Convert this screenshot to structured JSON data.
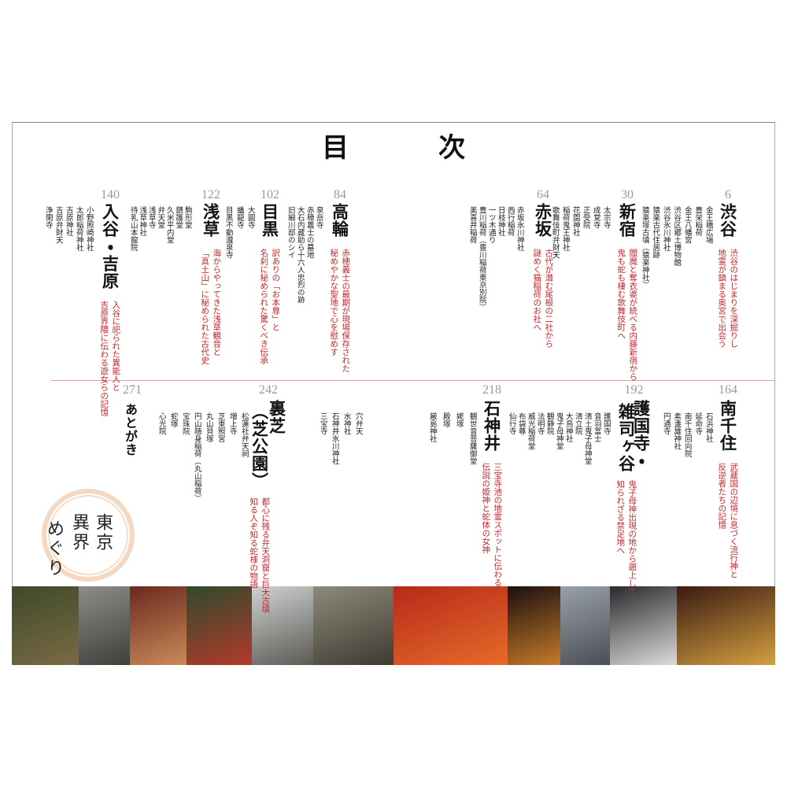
{
  "title": "目　次",
  "sections": [
    {
      "page": "6",
      "title": [
        "渋谷"
      ],
      "subtitle": [
        "渋谷のはじまりを深掘りし",
        "地霊が鎮まる奥宮で出会う"
      ],
      "items": [
        "金王橋広場",
        "豊栄稲荷",
        "金王八幡宮",
        "渋谷区郷土博物館",
        "渋谷氷川神社",
        "猿楽古代住居跡",
        "猿楽塚古墳（猿楽神社）"
      ]
    },
    {
      "page": "30",
      "title": [
        "新宿"
      ],
      "subtitle": [
        "閻魔と奪衣婆が統べる内藤新宿から",
        "鬼も蛇も棲む歌舞伎町へ"
      ],
      "items": [
        "太宗寺",
        "成覚寺",
        "正受院",
        "花園神社",
        "稲荷鬼王神社",
        "歌舞伎町弁財天"
      ]
    },
    {
      "page": "64",
      "title": [
        "赤坂"
      ],
      "subtitle": [
        "古代が潜む尾根の二社から",
        "謎めく猫稲荷のお社へ"
      ],
      "items": [
        "赤坂氷川神社",
        "西行稲荷",
        "日枝神社",
        "一ツ木通り",
        "豊川稲荷（豊川稲荷東京別院）",
        "美喜井稲荷"
      ]
    },
    {
      "page": "84",
      "title": [
        "高輪"
      ],
      "subtitle": [
        "赤穂義士の最期が現場保存された",
        "秘めやかな聖地で心を慰めす"
      ],
      "items": [
        "泉岳寺",
        "赤穂義士の墓地",
        "大石内蔵助ら十六人忠烈の跡",
        "旧細川邸のシイ"
      ]
    },
    {
      "page": "102",
      "title": [
        "目黒"
      ],
      "subtitle": [
        "訳ありの「お本尊」と",
        "名刹に秘められた驚くべき伝承"
      ],
      "items": [
        "大圓寺",
        "蟠龍寺",
        "目黒不動瀧泉寺"
      ]
    },
    {
      "page": "122",
      "title": [
        "浅草"
      ],
      "subtitle": [
        "海からやってきた浅草観音と",
        "「真土山」に秘められた古代史"
      ],
      "items": [
        "駒形堂",
        "鎮護堂",
        "久米平内堂",
        "弁天堂",
        "浅草寺",
        "浅草神社",
        "待乳山本龍院"
      ]
    },
    {
      "page": "140",
      "title": [
        "入谷・吉原"
      ],
      "subtitle": [
        "入谷に祀られた異能人と",
        "吉原界隈に伝わる遊女らの記憶"
      ],
      "items": [
        "小野照崎神社",
        "太郎稲荷神社",
        "吉原神社",
        "吉原弁財天",
        "浄閑寺"
      ]
    },
    {
      "page": "164",
      "title": [
        "南千住"
      ],
      "subtitle": [
        "武蔵国の辺境に息づく流行神と",
        "反逆者たちの記憶"
      ],
      "items": [
        "石浜神社",
        "延命寺",
        "南千住回向院",
        "素盞雄神社",
        "円通寺"
      ]
    },
    {
      "page": "192",
      "title": [
        "護国寺・",
        "雑司ヶ谷"
      ],
      "subtitle": [
        "鬼子母神出現の地から遡上して",
        "知られざる禁足地へ"
      ],
      "items": [
        "護国寺",
        "音羽富士",
        "清土鬼子母神堂",
        "清立院",
        "大鳥神社",
        "鬼子母神堂",
        "観静院",
        "法明寺",
        "威光稲荷堂",
        "布袋尊",
        "仙行寺"
      ]
    },
    {
      "page": "218",
      "title": [
        "石神井"
      ],
      "subtitle": [
        "三宝寺池の地霊スポットに伝わる",
        "伝説の姫神と蛇体の女神"
      ],
      "items": [
        "観世音菩薩御堂",
        "姥塚",
        "殿塚",
        "厳島神社",
        "穴弁天",
        "水神社",
        "石神井氷川神社",
        "三宝寺"
      ]
    },
    {
      "page": "242",
      "title": [
        "裏芝",
        "（芝公園）"
      ],
      "subtitle": [
        "都心に残る弁天洞窟と巨大古墳",
        "知る人ぞ知る蛇様の物語"
      ],
      "items": [
        "松蓮社弁天祠",
        "増上寺",
        "芝東照宮",
        "丸山貝塚",
        "円山随身稲荷（丸山稲荷）",
        "宝珠院",
        "蛇塚",
        "心光院"
      ]
    }
  ],
  "afterword": {
    "page": "271",
    "title": "あとがき"
  },
  "logo": [
    "東京",
    "異界",
    "めぐり"
  ]
}
